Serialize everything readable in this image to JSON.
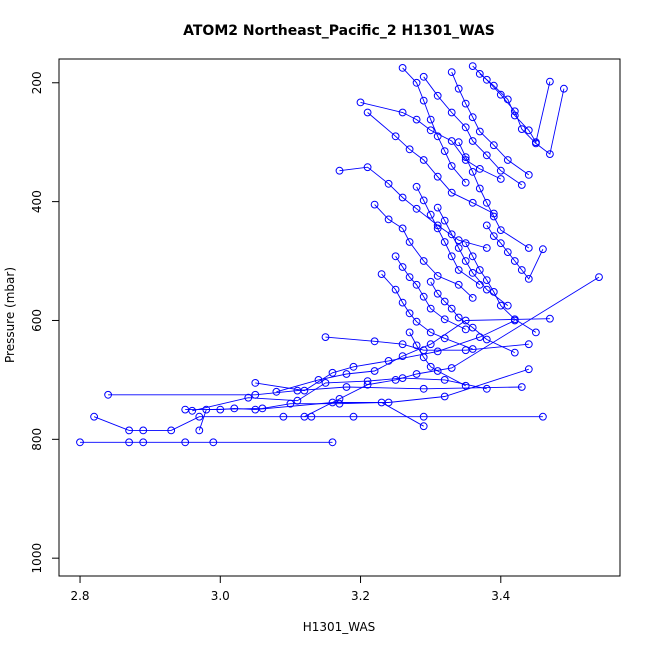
{
  "chart_data": {
    "type": "line",
    "title": "ATOM2 Northeast_Pacific_2 H1301_WAS",
    "xlabel": "H1301_WAS",
    "ylabel": "Pressure (mbar)",
    "xlim": [
      2.77,
      3.57
    ],
    "ylim": [
      1030,
      160
    ],
    "y_reversed": true,
    "grid": false,
    "legend": "none",
    "markers": "open-circle",
    "color": "#0000ff",
    "x_ticks": [
      2.8,
      3.0,
      3.2,
      3.4
    ],
    "x_tick_labels": [
      "2.8",
      "3.0",
      "3.2",
      "3.4"
    ],
    "y_ticks": [
      200,
      400,
      600,
      800,
      1000
    ],
    "y_tick_labels": [
      "200",
      "400",
      "600",
      "800",
      "1000"
    ],
    "series": [
      {
        "values": [
          [
            2.8,
            805
          ],
          [
            2.87,
            805
          ],
          [
            2.89,
            805
          ],
          [
            2.95,
            805
          ],
          [
            2.99,
            805
          ],
          [
            3.16,
            805
          ]
        ]
      },
      {
        "values": [
          [
            2.82,
            762
          ],
          [
            2.87,
            785
          ],
          [
            2.89,
            785
          ],
          [
            2.93,
            785
          ],
          [
            2.97,
            762
          ],
          [
            3.09,
            762
          ],
          [
            3.13,
            762
          ],
          [
            3.19,
            762
          ],
          [
            3.29,
            762
          ],
          [
            3.46,
            762
          ]
        ]
      },
      {
        "values": [
          [
            2.84,
            725
          ],
          [
            3.05,
            725
          ],
          [
            3.11,
            718
          ],
          [
            3.18,
            712
          ],
          [
            3.29,
            715
          ],
          [
            3.43,
            712
          ]
        ]
      },
      {
        "values": [
          [
            2.95,
            750
          ],
          [
            3.0,
            750
          ],
          [
            3.02,
            748
          ],
          [
            3.05,
            750
          ],
          [
            3.16,
            738
          ],
          [
            3.24,
            738
          ],
          [
            3.32,
            728
          ],
          [
            3.44,
            682
          ]
        ]
      },
      {
        "values": [
          [
            2.97,
            785
          ],
          [
            2.98,
            750
          ],
          [
            3.06,
            748
          ],
          [
            3.1,
            740
          ],
          [
            3.17,
            740
          ],
          [
            3.23,
            738
          ],
          [
            3.29,
            778
          ]
        ]
      },
      {
        "values": [
          [
            2.96,
            752
          ],
          [
            3.04,
            730
          ],
          [
            3.11,
            735
          ],
          [
            3.15,
            705
          ],
          [
            3.21,
            702
          ],
          [
            3.26,
            697
          ],
          [
            3.32,
            700
          ],
          [
            3.38,
            715
          ]
        ]
      },
      {
        "values": [
          [
            3.05,
            705
          ],
          [
            3.12,
            718
          ],
          [
            3.16,
            688
          ],
          [
            3.19,
            678
          ],
          [
            3.24,
            668
          ],
          [
            3.31,
            652
          ],
          [
            3.37,
            628
          ],
          [
            3.42,
            600
          ]
        ]
      },
      {
        "values": [
          [
            3.08,
            720
          ],
          [
            3.14,
            700
          ],
          [
            3.18,
            690
          ],
          [
            3.22,
            685
          ],
          [
            3.26,
            660
          ],
          [
            3.3,
            640
          ],
          [
            3.35,
            600
          ],
          [
            3.47,
            597
          ]
        ]
      },
      {
        "values": [
          [
            3.12,
            762
          ],
          [
            3.17,
            732
          ],
          [
            3.21,
            708
          ],
          [
            3.25,
            700
          ],
          [
            3.28,
            690
          ],
          [
            3.33,
            680
          ],
          [
            3.54,
            527
          ]
        ]
      },
      {
        "values": [
          [
            3.15,
            628
          ],
          [
            3.22,
            635
          ],
          [
            3.26,
            640
          ],
          [
            3.29,
            650
          ],
          [
            3.35,
            650
          ],
          [
            3.44,
            640
          ]
        ]
      },
      {
        "values": [
          [
            3.17,
            348
          ],
          [
            3.21,
            342
          ],
          [
            3.24,
            370
          ],
          [
            3.26,
            393
          ],
          [
            3.28,
            412
          ],
          [
            3.31,
            440
          ],
          [
            3.34,
            465
          ],
          [
            3.38,
            478
          ]
        ]
      },
      {
        "values": [
          [
            3.2,
            233
          ],
          [
            3.26,
            250
          ],
          [
            3.28,
            262
          ],
          [
            3.3,
            280
          ],
          [
            3.33,
            298
          ],
          [
            3.35,
            330
          ],
          [
            3.37,
            345
          ],
          [
            3.4,
            362
          ]
        ]
      },
      {
        "values": [
          [
            3.21,
            250
          ],
          [
            3.25,
            290
          ],
          [
            3.27,
            312
          ],
          [
            3.29,
            330
          ],
          [
            3.31,
            358
          ],
          [
            3.33,
            385
          ],
          [
            3.36,
            402
          ],
          [
            3.39,
            420
          ]
        ]
      },
      {
        "values": [
          [
            3.22,
            405
          ],
          [
            3.24,
            430
          ],
          [
            3.26,
            445
          ],
          [
            3.27,
            468
          ],
          [
            3.29,
            500
          ],
          [
            3.31,
            525
          ],
          [
            3.34,
            540
          ],
          [
            3.36,
            562
          ]
        ]
      },
      {
        "values": [
          [
            3.23,
            522
          ],
          [
            3.25,
            548
          ],
          [
            3.26,
            570
          ],
          [
            3.27,
            588
          ],
          [
            3.28,
            602
          ],
          [
            3.3,
            620
          ],
          [
            3.32,
            630
          ],
          [
            3.36,
            648
          ]
        ]
      },
      {
        "values": [
          [
            3.25,
            492
          ],
          [
            3.26,
            510
          ],
          [
            3.27,
            527
          ],
          [
            3.28,
            540
          ],
          [
            3.29,
            560
          ],
          [
            3.3,
            580
          ],
          [
            3.32,
            598
          ],
          [
            3.35,
            615
          ]
        ]
      },
      {
        "values": [
          [
            3.26,
            175
          ],
          [
            3.28,
            200
          ],
          [
            3.29,
            230
          ],
          [
            3.3,
            262
          ],
          [
            3.31,
            290
          ],
          [
            3.32,
            315
          ],
          [
            3.33,
            340
          ],
          [
            3.35,
            368
          ]
        ]
      },
      {
        "values": [
          [
            3.27,
            620
          ],
          [
            3.28,
            642
          ],
          [
            3.29,
            662
          ],
          [
            3.3,
            678
          ],
          [
            3.31,
            685
          ],
          [
            3.35,
            710
          ]
        ]
      },
      {
        "values": [
          [
            3.28,
            375
          ],
          [
            3.29,
            398
          ],
          [
            3.3,
            422
          ],
          [
            3.31,
            445
          ],
          [
            3.32,
            468
          ],
          [
            3.33,
            492
          ],
          [
            3.34,
            515
          ],
          [
            3.37,
            540
          ]
        ]
      },
      {
        "values": [
          [
            3.29,
            190
          ],
          [
            3.31,
            222
          ],
          [
            3.33,
            250
          ],
          [
            3.35,
            275
          ],
          [
            3.36,
            298
          ],
          [
            3.38,
            322
          ],
          [
            3.4,
            348
          ],
          [
            3.43,
            372
          ]
        ]
      },
      {
        "values": [
          [
            3.3,
            535
          ],
          [
            3.31,
            555
          ],
          [
            3.32,
            568
          ],
          [
            3.33,
            580
          ],
          [
            3.34,
            595
          ],
          [
            3.36,
            612
          ],
          [
            3.38,
            632
          ],
          [
            3.42,
            654
          ]
        ]
      },
      {
        "values": [
          [
            3.31,
            410
          ],
          [
            3.32,
            432
          ],
          [
            3.33,
            455
          ],
          [
            3.34,
            478
          ],
          [
            3.35,
            500
          ],
          [
            3.36,
            520
          ],
          [
            3.38,
            548
          ],
          [
            3.41,
            575
          ]
        ]
      },
      {
        "values": [
          [
            3.33,
            182
          ],
          [
            3.34,
            210
          ],
          [
            3.35,
            235
          ],
          [
            3.36,
            258
          ],
          [
            3.37,
            282
          ],
          [
            3.39,
            305
          ],
          [
            3.41,
            330
          ],
          [
            3.44,
            355
          ]
        ]
      },
      {
        "values": [
          [
            3.34,
            300
          ],
          [
            3.35,
            325
          ],
          [
            3.36,
            350
          ],
          [
            3.37,
            378
          ],
          [
            3.38,
            402
          ],
          [
            3.39,
            425
          ],
          [
            3.4,
            448
          ],
          [
            3.44,
            478
          ]
        ]
      },
      {
        "values": [
          [
            3.35,
            470
          ],
          [
            3.36,
            492
          ],
          [
            3.37,
            515
          ],
          [
            3.38,
            532
          ],
          [
            3.39,
            552
          ],
          [
            3.4,
            575
          ],
          [
            3.42,
            598
          ],
          [
            3.45,
            620
          ]
        ]
      },
      {
        "values": [
          [
            3.36,
            172
          ],
          [
            3.38,
            195
          ],
          [
            3.4,
            220
          ],
          [
            3.42,
            248
          ],
          [
            3.43,
            278
          ],
          [
            3.45,
            302
          ],
          [
            3.47,
            320
          ],
          [
            3.49,
            210
          ]
        ]
      },
      {
        "values": [
          [
            3.37,
            185
          ],
          [
            3.39,
            205
          ],
          [
            3.41,
            228
          ],
          [
            3.42,
            255
          ],
          [
            3.44,
            280
          ],
          [
            3.45,
            300
          ],
          [
            3.47,
            198
          ]
        ]
      },
      {
        "values": [
          [
            3.38,
            440
          ],
          [
            3.39,
            458
          ],
          [
            3.4,
            470
          ],
          [
            3.41,
            485
          ],
          [
            3.42,
            500
          ],
          [
            3.43,
            515
          ],
          [
            3.44,
            530
          ],
          [
            3.46,
            480
          ]
        ]
      }
    ]
  }
}
